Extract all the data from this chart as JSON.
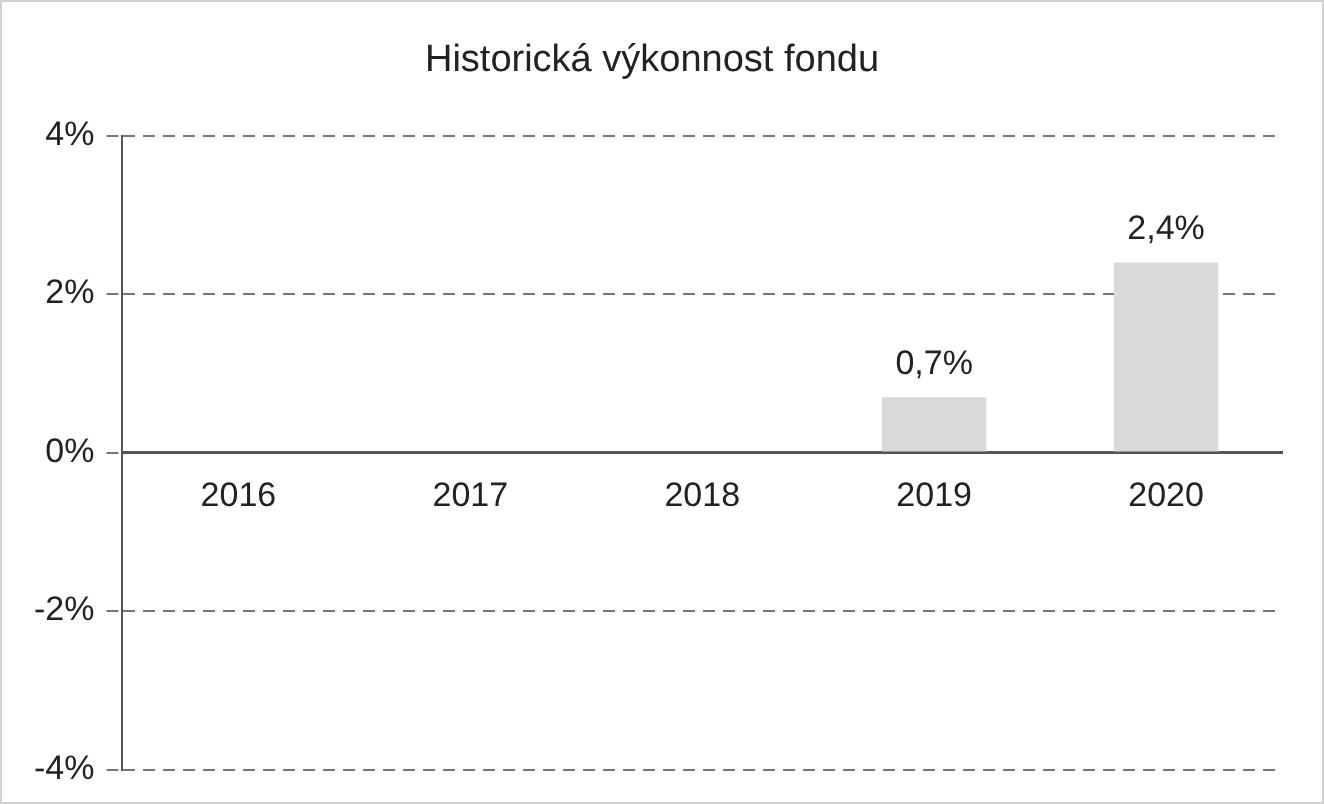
{
  "chart_data": {
    "type": "bar",
    "title": "Historická výkonnost fondu",
    "categories": [
      "2016",
      "2017",
      "2018",
      "2019",
      "2020"
    ],
    "values": [
      null,
      null,
      null,
      0.7,
      2.4
    ],
    "value_labels": [
      null,
      null,
      null,
      "0,7%",
      "2,4%"
    ],
    "color": "#d9d9d9",
    "ylim": [
      -4,
      4
    ],
    "yticks": [
      {
        "value": -4,
        "label": "-4%"
      },
      {
        "value": -2,
        "label": "-2%"
      },
      {
        "value": 0,
        "label": "0%"
      },
      {
        "value": 2,
        "label": "2%"
      },
      {
        "value": 4,
        "label": "4%"
      }
    ],
    "grid": "y",
    "legend": false
  }
}
